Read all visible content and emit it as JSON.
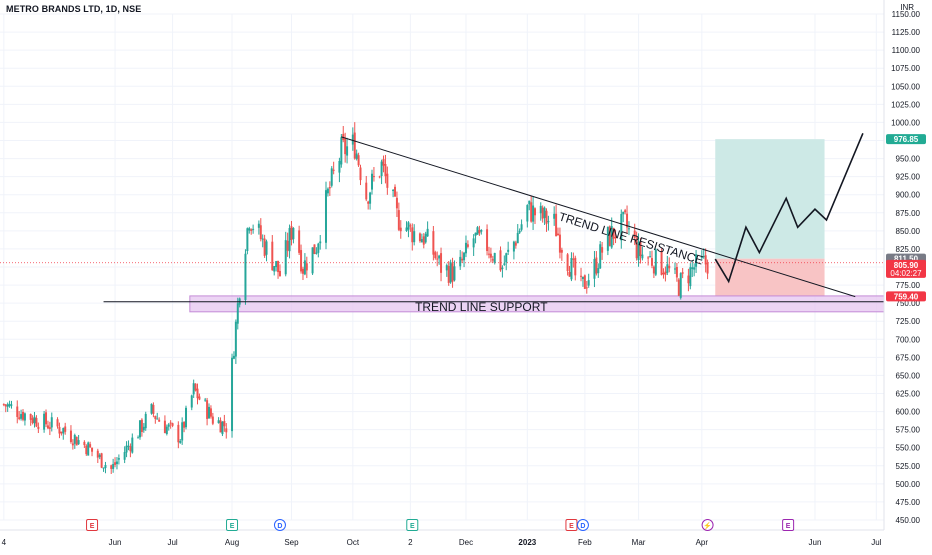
{
  "header": {
    "title": "METRO BRANDS LTD, 1D, NSE",
    "currency": "INR"
  },
  "price_labels": {
    "target": "976.85",
    "entry": "811.50",
    "current": "805.90",
    "countdown": "04:02:27",
    "stop": "759.40"
  },
  "annotations": {
    "resistance": "TREND LINE RESISTANCE",
    "support": "TREND LINE SUPPORT"
  },
  "colors": {
    "up": "#26a69a",
    "down": "#ef5350",
    "target_zone": "#cde9e6",
    "stop_zone": "#f8c4c5",
    "support_zone": "#e6c6f0",
    "support_border": "#c48bd6",
    "target_tag": "#22ab94",
    "entry_tag": "#787b86",
    "current_tag": "#f23645",
    "axis_text": "#131722",
    "event_earnings": "#e0383e",
    "event_dividend": "#2962ff",
    "event_split": "#22ab94",
    "event_future": "#9c27b0"
  },
  "events": [
    {
      "letter": "E",
      "date": "2022-05-20",
      "kind": "earnings"
    },
    {
      "letter": "E",
      "date": "2022-08-01",
      "kind": "split"
    },
    {
      "letter": "D",
      "date": "2022-08-26",
      "kind": "dividend"
    },
    {
      "letter": "E",
      "date": "2022-11-03",
      "kind": "split"
    },
    {
      "letter": "E",
      "date": "2023-01-25",
      "kind": "earnings"
    },
    {
      "letter": "D",
      "date": "2023-01-31",
      "kind": "dividend"
    },
    {
      "letter": "⚡",
      "date": "2023-04-06",
      "kind": "future"
    },
    {
      "letter": "E",
      "date": "2023-05-18",
      "kind": "future"
    }
  ],
  "chart_data": {
    "type": "candlestick",
    "title": "METRO BRANDS LTD, 1D, NSE",
    "y_unit": "INR",
    "ylim": [
      450,
      1150
    ],
    "y_ticks": [
      450,
      475,
      500,
      525,
      550,
      575,
      600,
      625,
      650,
      675,
      700,
      725,
      750,
      775,
      800,
      825,
      850,
      875,
      900,
      925,
      950,
      975,
      1000,
      1025,
      1050,
      1075,
      1100,
      1125,
      1150
    ],
    "xlim": [
      "2022-04-02",
      "2023-07-07"
    ],
    "x_ticks": [
      {
        "label": "4",
        "date": "2022-04-04"
      },
      {
        "label": "Jun",
        "date": "2022-06-01"
      },
      {
        "label": "Jul",
        "date": "2022-07-01"
      },
      {
        "label": "Aug",
        "date": "2022-08-01"
      },
      {
        "label": "Sep",
        "date": "2022-09-01"
      },
      {
        "label": "Oct",
        "date": "2022-10-03"
      },
      {
        "label": "2",
        "date": "2022-11-02"
      },
      {
        "label": "Dec",
        "date": "2022-12-01"
      },
      {
        "label": "2023",
        "date": "2023-01-02"
      },
      {
        "label": "Feb",
        "date": "2023-02-01"
      },
      {
        "label": "Mar",
        "date": "2023-03-01"
      },
      {
        "label": "Apr",
        "date": "2023-04-03"
      },
      {
        "label": "Jun",
        "date": "2023-06-01"
      },
      {
        "label": "Jul",
        "date": "2023-07-03"
      }
    ],
    "close_path": [
      [
        "2022-04-04",
        610
      ],
      [
        "2022-04-20",
        590
      ],
      [
        "2022-05-05",
        575
      ],
      [
        "2022-05-18",
        550
      ],
      [
        "2022-05-30",
        520
      ],
      [
        "2022-06-10",
        560
      ],
      [
        "2022-06-20",
        600
      ],
      [
        "2022-06-27",
        580
      ],
      [
        "2022-07-05",
        565
      ],
      [
        "2022-07-12",
        630
      ],
      [
        "2022-07-22",
        590
      ],
      [
        "2022-07-29",
        580
      ],
      [
        "2022-08-03",
        720
      ],
      [
        "2022-08-06",
        800
      ],
      [
        "2022-08-10",
        870
      ],
      [
        "2022-08-18",
        830
      ],
      [
        "2022-08-26",
        790
      ],
      [
        "2022-09-02",
        860
      ],
      [
        "2022-09-07",
        800
      ],
      [
        "2022-09-14",
        830
      ],
      [
        "2022-09-20",
        900
      ],
      [
        "2022-09-27",
        960
      ],
      [
        "2022-10-04",
        970
      ],
      [
        "2022-10-10",
        900
      ],
      [
        "2022-10-18",
        940
      ],
      [
        "2022-10-26",
        870
      ],
      [
        "2022-11-02",
        850
      ],
      [
        "2022-11-10",
        840
      ],
      [
        "2022-11-18",
        800
      ],
      [
        "2022-11-26",
        790
      ],
      [
        "2022-12-05",
        840
      ],
      [
        "2022-12-12",
        830
      ],
      [
        "2022-12-20",
        800
      ],
      [
        "2022-12-27",
        840
      ],
      [
        "2023-01-02",
        880
      ],
      [
        "2023-01-09",
        870
      ],
      [
        "2023-01-16",
        860
      ],
      [
        "2023-01-23",
        810
      ],
      [
        "2023-01-30",
        770
      ],
      [
        "2023-02-06",
        800
      ],
      [
        "2023-02-13",
        840
      ],
      [
        "2023-02-22",
        860
      ],
      [
        "2023-03-01",
        820
      ],
      [
        "2023-03-08",
        810
      ],
      [
        "2023-03-15",
        800
      ],
      [
        "2023-03-22",
        775
      ],
      [
        "2023-03-30",
        800
      ],
      [
        "2023-04-06",
        806
      ]
    ],
    "trend_line_resistance": {
      "from": [
        "2022-09-27",
        980
      ],
      "to": [
        "2023-06-22",
        759
      ]
    },
    "trend_line_support": {
      "from": [
        "2022-05-26",
        752
      ],
      "to": [
        "2023-07-07",
        752
      ]
    },
    "support_zone": {
      "from": "2022-07-10",
      "to": "2023-07-07",
      "low": 738,
      "high": 760
    },
    "position": {
      "from": "2023-04-10",
      "to": "2023-06-06",
      "target": 976.85,
      "entry": 811.5,
      "stop": 759.4
    },
    "projection": [
      [
        "2023-04-10",
        811
      ],
      [
        "2023-04-17",
        780
      ],
      [
        "2023-04-26",
        855
      ],
      [
        "2023-05-03",
        820
      ],
      [
        "2023-05-17",
        895
      ],
      [
        "2023-05-23",
        855
      ],
      [
        "2023-06-01",
        880
      ],
      [
        "2023-06-07",
        865
      ],
      [
        "2023-06-26",
        985
      ]
    ],
    "current_price": 805.9
  }
}
